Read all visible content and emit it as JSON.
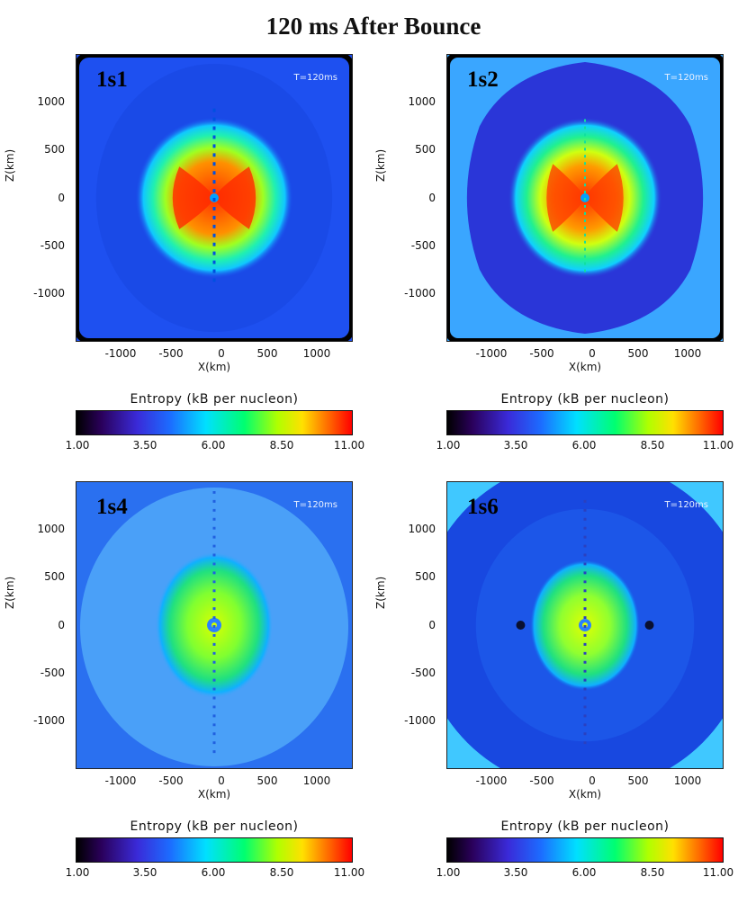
{
  "title": "120 ms After Bounce",
  "chart_data": [
    {
      "type": "heatmap",
      "label": "1s1",
      "time_label": "T=120ms",
      "xlabel": "X(km)",
      "ylabel": "Z(km)",
      "xlim": [
        -1500,
        1500
      ],
      "ylim": [
        -1500,
        1500
      ],
      "x_ticks": [
        "-1000",
        "-500",
        "0",
        "500",
        "1000"
      ],
      "y_ticks": [
        "1000",
        "500",
        "0",
        "-500",
        "-1000"
      ],
      "colorbar": {
        "title": "Entropy (kB per nucleon)",
        "ticks": [
          "1.00",
          "3.50",
          "6.00",
          "8.50",
          "11.00"
        ],
        "range": [
          1,
          11
        ]
      }
    },
    {
      "type": "heatmap",
      "label": "1s2",
      "time_label": "T=120ms",
      "xlabel": "X(km)",
      "ylabel": "Z(km)",
      "xlim": [
        -1500,
        1500
      ],
      "ylim": [
        -1500,
        1500
      ],
      "x_ticks": [
        "-1000",
        "-500",
        "0",
        "500",
        "1000"
      ],
      "y_ticks": [
        "1000",
        "500",
        "0",
        "-500",
        "-1000"
      ],
      "colorbar": {
        "title": "Entropy (kB per nucleon)",
        "ticks": [
          "1.00",
          "3.50",
          "6.00",
          "8.50",
          "11.00"
        ],
        "range": [
          1,
          11
        ]
      }
    },
    {
      "type": "heatmap",
      "label": "1s4",
      "time_label": "T=120ms",
      "xlabel": "X(km)",
      "ylabel": "Z(km)",
      "xlim": [
        -1500,
        1500
      ],
      "ylim": [
        -1500,
        1500
      ],
      "x_ticks": [
        "-1000",
        "-500",
        "0",
        "500",
        "1000"
      ],
      "y_ticks": [
        "1000",
        "500",
        "0",
        "-500",
        "-1000"
      ],
      "colorbar": {
        "title": "Entropy (kB per nucleon)",
        "ticks": [
          "1.00",
          "3.50",
          "6.00",
          "8.50",
          "11.00"
        ],
        "range": [
          1,
          11
        ]
      }
    },
    {
      "type": "heatmap",
      "label": "1s6",
      "time_label": "T=120ms",
      "xlabel": "X(km)",
      "ylabel": "Z(km)",
      "xlim": [
        -1500,
        1500
      ],
      "ylim": [
        -1500,
        1500
      ],
      "x_ticks": [
        "-1000",
        "-500",
        "0",
        "500",
        "1000"
      ],
      "y_ticks": [
        "1000",
        "500",
        "0",
        "-500",
        "-1000"
      ],
      "colorbar": {
        "title": "Entropy (kB per nucleon)",
        "ticks": [
          "1.00",
          "3.50",
          "6.00",
          "8.50",
          "11.00"
        ],
        "range": [
          1,
          11
        ]
      }
    }
  ],
  "colors": {
    "background_1s1": "#1e50f0",
    "background_1s2": "#3aa6ff",
    "shell_1s2": "#2a36d8",
    "background_1s4": "#2a70f0",
    "halo_1s4": "#4aa0f8",
    "background_1s6": "#1848e0",
    "corner_1s6": "#40c8ff"
  }
}
